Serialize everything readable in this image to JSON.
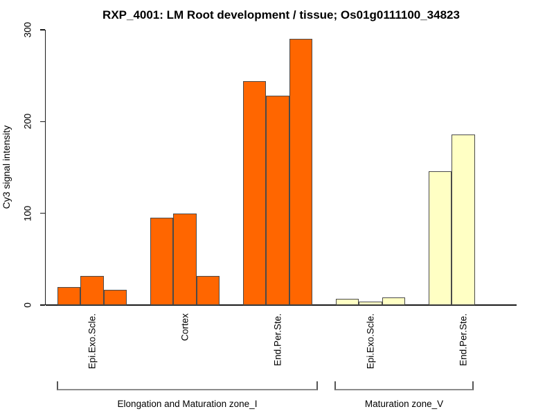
{
  "chart_data": {
    "type": "bar",
    "title": "RXP_4001: LM Root development / tissue; Os01g0111100_34823",
    "ylabel": "Cy3 signal intensity",
    "xlabel": "",
    "ylim": [
      0,
      300
    ],
    "yticks": [
      0,
      100,
      200,
      300
    ],
    "grid": false,
    "legend_position": "none",
    "groups": [
      {
        "tissue": "Epi.Exo.Scle.",
        "zone": "Elongation and Maturation zone_I",
        "color": "#ff6600",
        "values": [
          20,
          32,
          17
        ]
      },
      {
        "tissue": "Cortex",
        "zone": "Elongation and Maturation zone_I",
        "color": "#ff6600",
        "values": [
          95,
          100,
          32
        ]
      },
      {
        "tissue": "End.Per.Ste.",
        "zone": "Elongation and Maturation zone_I",
        "color": "#ff6600",
        "values": [
          244,
          228,
          290
        ]
      },
      {
        "tissue": "Epi.Exo.Scle.",
        "zone": "Maturation zone_V",
        "color": "#ffffc4",
        "values": [
          7,
          4,
          8
        ]
      },
      {
        "tissue": "End.Per.Ste.",
        "zone": "Maturation zone_V",
        "color": "#ffffc4",
        "values": [
          146,
          186
        ]
      }
    ],
    "zone_brackets": [
      {
        "label": "Elongation and Maturation zone_I",
        "group_indexes": [
          0,
          1,
          2
        ]
      },
      {
        "label": "Maturation zone_V",
        "group_indexes": [
          3,
          4
        ]
      }
    ]
  },
  "colors": {
    "bar_orange": "#ff6600",
    "bar_pale_yellow": "#ffffc4",
    "bar_border": "#4a4a4a",
    "axis": "#1a1a1a",
    "bracket_line": "#8c8c8c",
    "bracket_tick": "#555555",
    "background": "#ffffff",
    "text": "#000000"
  }
}
